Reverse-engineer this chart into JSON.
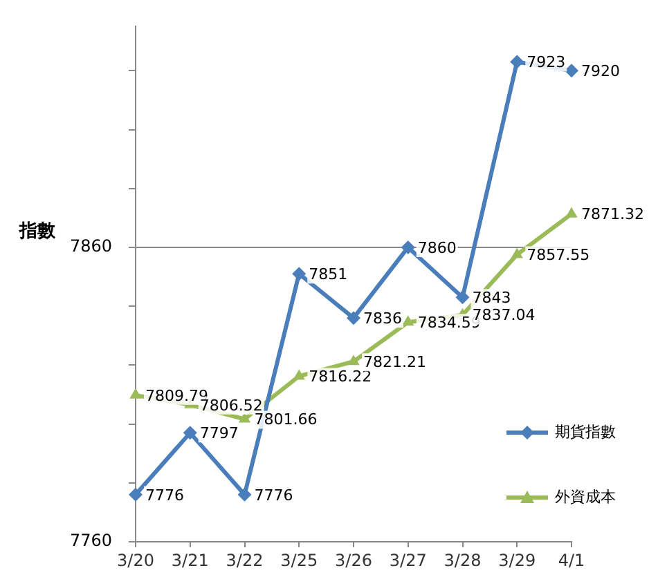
{
  "chart_data": {
    "type": "line",
    "ylabel": "指數",
    "categories": [
      "3/20",
      "3/21",
      "3/22",
      "3/25",
      "3/26",
      "3/27",
      "3/28",
      "3/29",
      "4/1"
    ],
    "series": [
      {
        "name": "期貨指數",
        "color": "#4a7ebb",
        "marker": "diamond",
        "values": [
          7776,
          7797,
          7776,
          7851,
          7836,
          7860,
          7843,
          7923,
          7920
        ]
      },
      {
        "name": "外資成本",
        "color": "#9bbb59",
        "marker": "triangle",
        "values": [
          7809.79,
          7806.52,
          7801.66,
          7816.22,
          7821.21,
          7834.59,
          7837.04,
          7857.55,
          7871.32
        ]
      }
    ],
    "ylim": [
      7760,
      7935
    ],
    "yticks": [
      7760,
      {
        "value": 7780,
        "label": null
      },
      {
        "value": 7800,
        "label": null
      },
      {
        "value": 7820,
        "label": null
      },
      {
        "value": 7840,
        "label": null
      },
      7860,
      {
        "value": 7880,
        "label": null
      },
      {
        "value": 7900,
        "label": null
      },
      {
        "value": 7920,
        "label": null
      }
    ],
    "grid": "y",
    "legend": "right",
    "data_labels": true,
    "line_style": "solid"
  }
}
